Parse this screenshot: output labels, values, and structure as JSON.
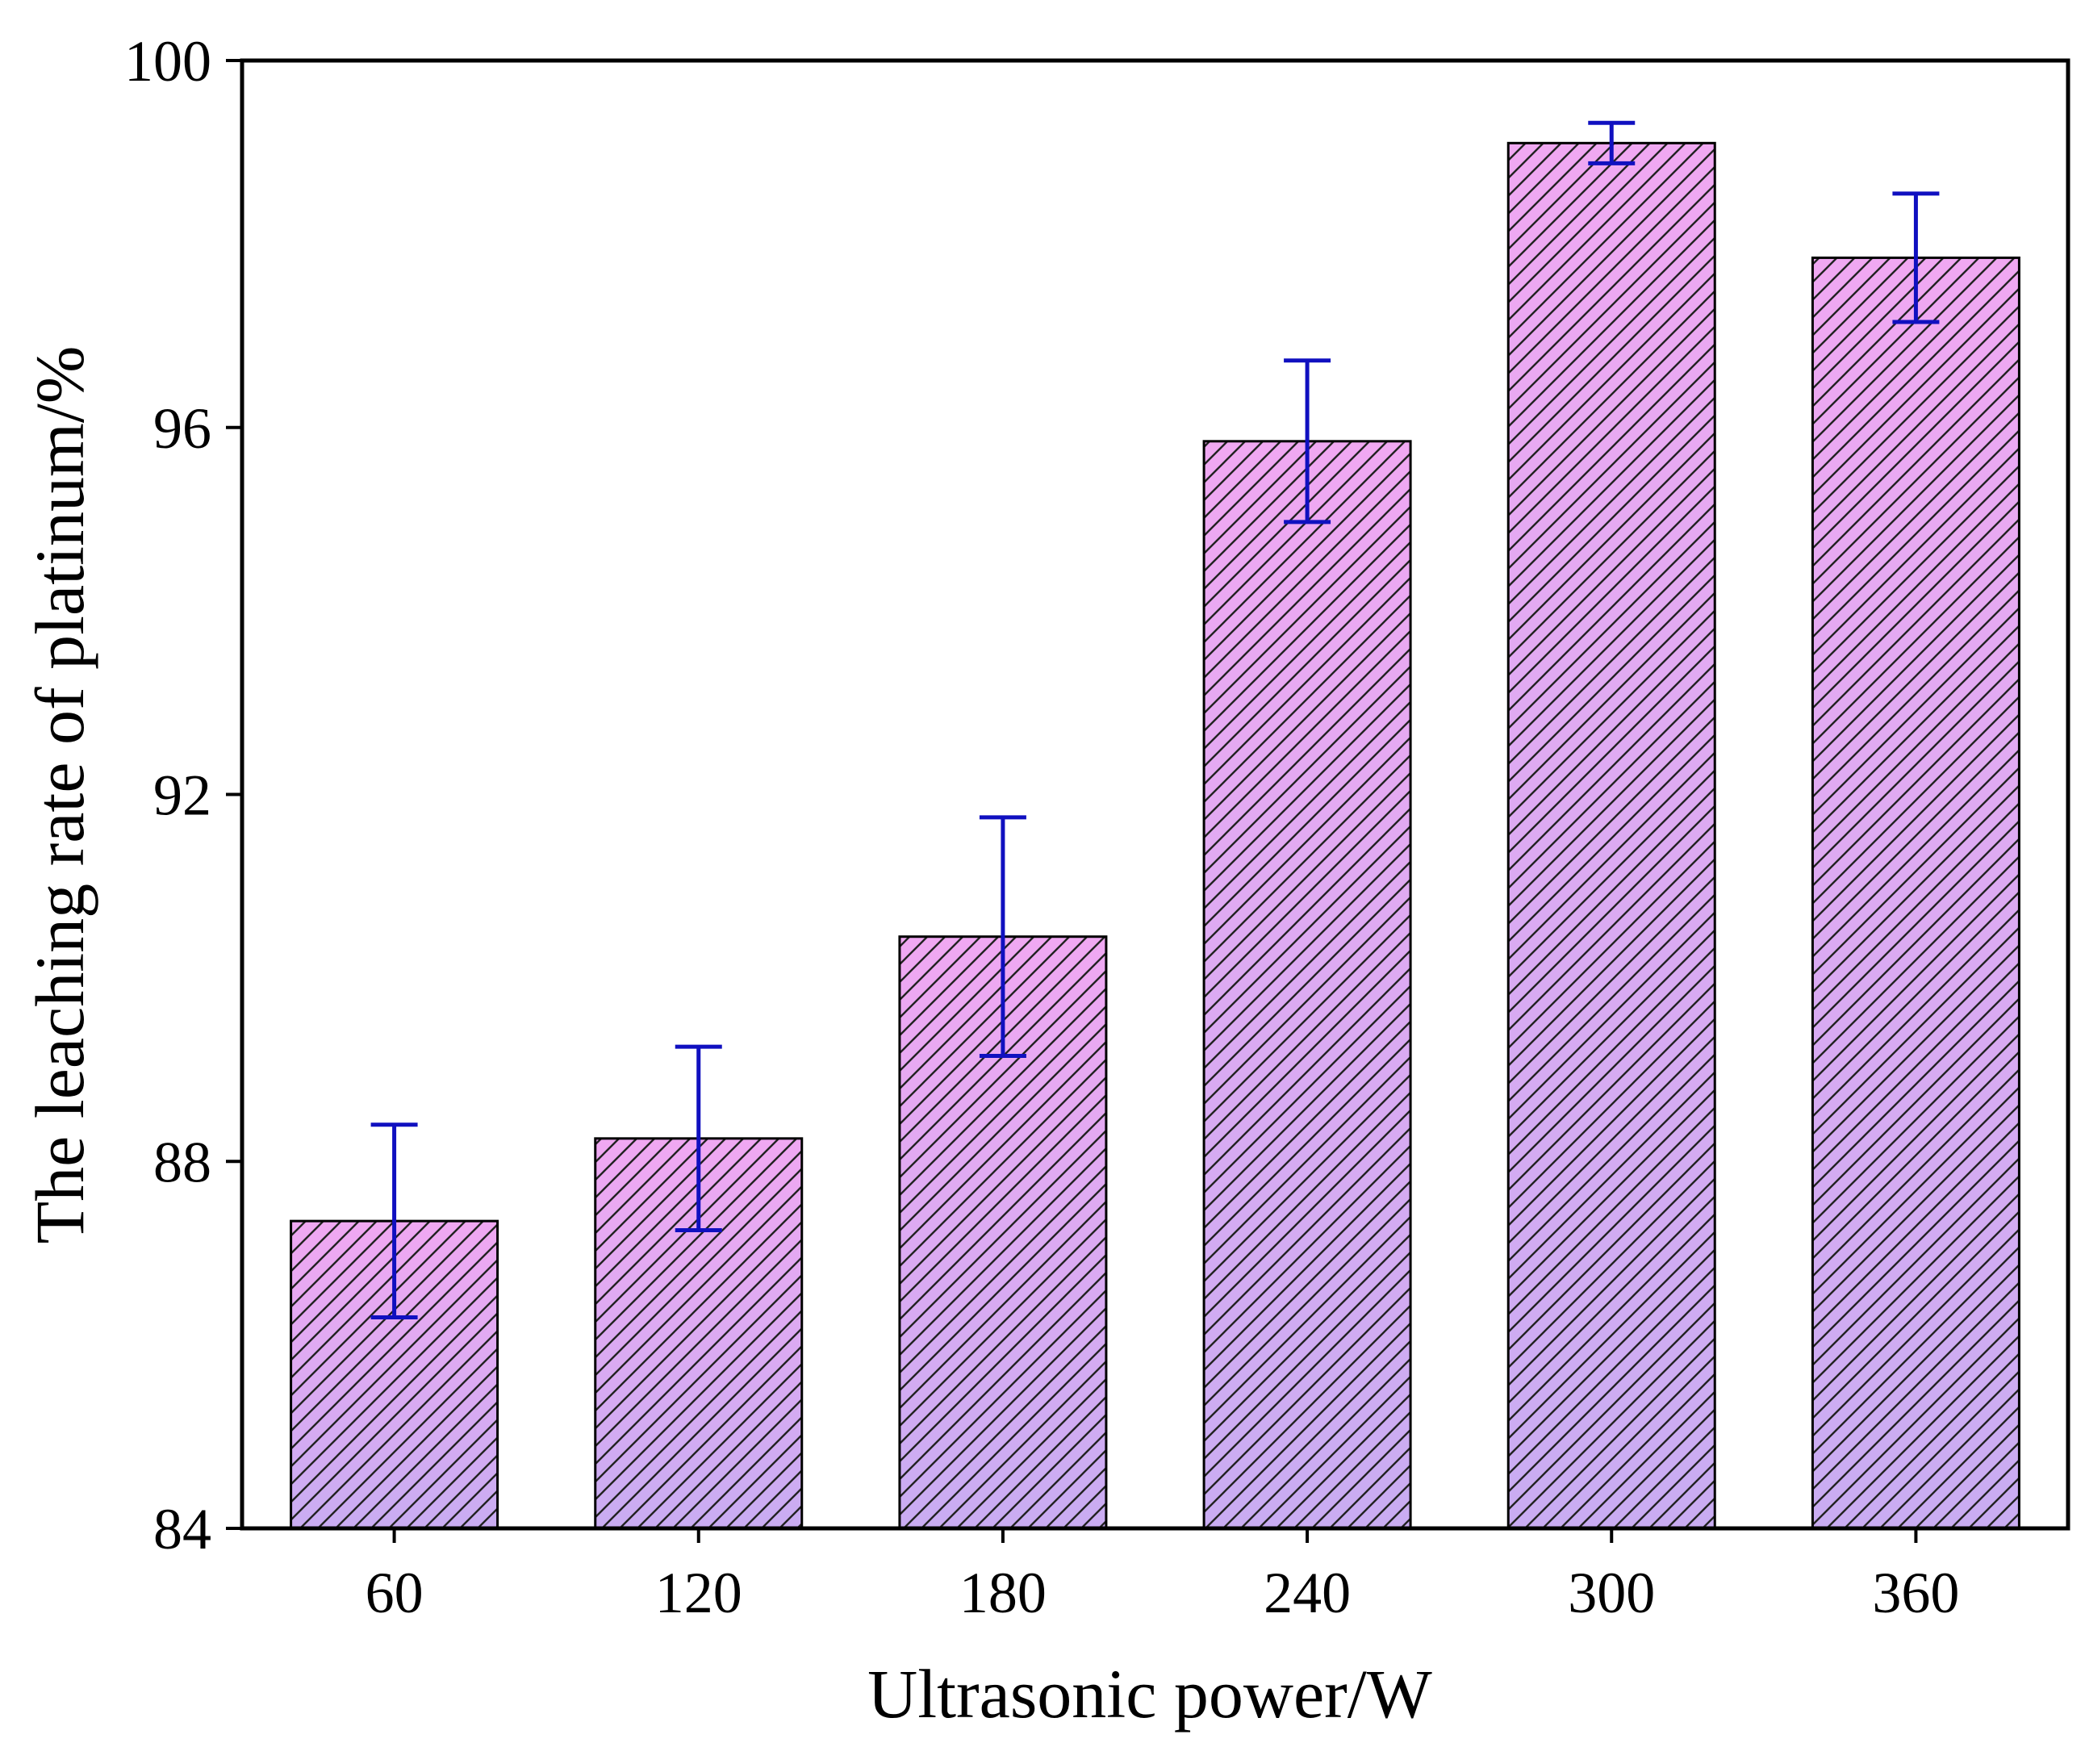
{
  "chart_data": {
    "type": "bar",
    "title": "",
    "xlabel": "Ultrasonic power/W",
    "ylabel": "The leaching rate of platinum/%",
    "categories": [
      "60",
      "120",
      "180",
      "240",
      "300",
      "360"
    ],
    "values": [
      87.35,
      88.25,
      90.45,
      95.85,
      99.1,
      97.85
    ],
    "error": [
      1.05,
      1.0,
      1.3,
      0.88,
      0.22,
      0.7
    ],
    "ylim": [
      84,
      100
    ],
    "yticks": [
      "84",
      "88",
      "92",
      "96",
      "100"
    ],
    "grid": false,
    "legend": "none",
    "colors": {
      "bar_top": "#f0a8f2",
      "bar_bottom": "#c9acf2",
      "hatch": "#222222",
      "error_bar": "#1010c0",
      "axis": "#000000"
    }
  }
}
